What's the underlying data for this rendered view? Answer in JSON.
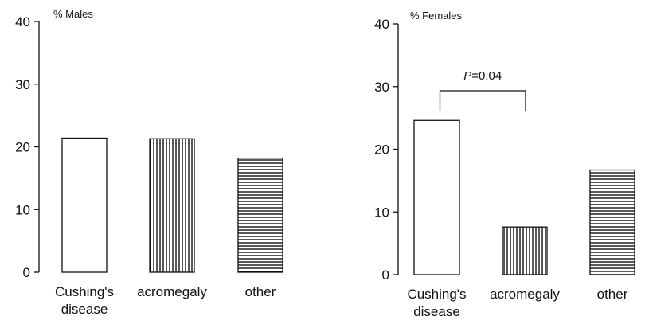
{
  "chart_data": [
    {
      "type": "bar",
      "title": "% Males",
      "categories": [
        "Cushing's disease",
        "acromegaly",
        "other"
      ],
      "category_lines": [
        [
          "Cushing's",
          "disease"
        ],
        [
          "acromegaly"
        ],
        [
          "other"
        ]
      ],
      "values": [
        21.4,
        21.3,
        18.2
      ],
      "patterns": [
        "none",
        "vertical",
        "horizontal"
      ],
      "ylim": [
        0,
        40
      ],
      "yticks": [
        "0",
        "10",
        "20",
        "30",
        "40"
      ],
      "grid": false,
      "annotation": null
    },
    {
      "type": "bar",
      "title": "% Females",
      "categories": [
        "Cushing's disease",
        "acromegaly",
        "other"
      ],
      "category_lines": [
        [
          "Cushing's",
          "disease"
        ],
        [
          "acromegaly"
        ],
        [
          "other"
        ]
      ],
      "values": [
        24.6,
        7.6,
        16.7
      ],
      "patterns": [
        "none",
        "vertical",
        "horizontal"
      ],
      "ylim": [
        0,
        40
      ],
      "yticks": [
        "0",
        "10",
        "20",
        "30",
        "40"
      ],
      "grid": false,
      "annotation": {
        "p_symbol": "P",
        "p_rest": "=0.04",
        "between": [
          0,
          1
        ]
      }
    }
  ]
}
